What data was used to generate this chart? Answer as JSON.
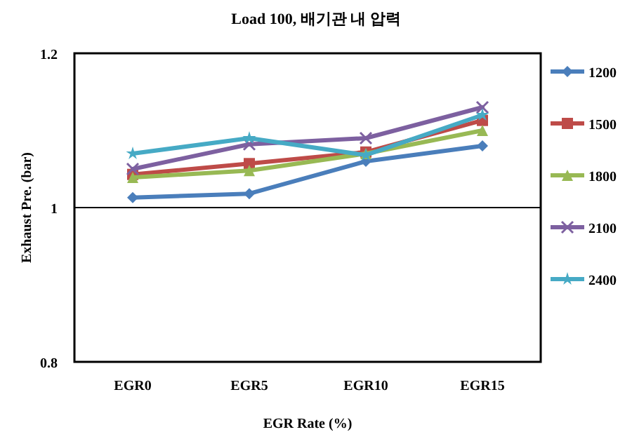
{
  "chart_data": {
    "type": "line",
    "title": "Load 100, 배기관 내 압력",
    "xlabel": "EGR Rate (%)",
    "ylabel": "Exhaust Pre. (bar)",
    "categories": [
      "EGR0",
      "EGR5",
      "EGR10",
      "EGR15"
    ],
    "ylim": [
      0.8,
      1.2
    ],
    "yticks": [
      0.8,
      1,
      1.2
    ],
    "grid": "y",
    "legend": "right",
    "series": [
      {
        "name": "1200",
        "color": "#4a7ebb",
        "marker": "diamond",
        "values": [
          1.013,
          1.018,
          1.06,
          1.08
        ]
      },
      {
        "name": "1500",
        "color": "#be4b48",
        "marker": "square",
        "values": [
          1.043,
          1.057,
          1.072,
          1.113
        ]
      },
      {
        "name": "1800",
        "color": "#98b954",
        "marker": "triangle",
        "values": [
          1.039,
          1.048,
          1.07,
          1.1
        ]
      },
      {
        "name": "2100",
        "color": "#7d60a0",
        "marker": "cross",
        "values": [
          1.05,
          1.082,
          1.09,
          1.13
        ]
      },
      {
        "name": "2400",
        "color": "#46aac5",
        "marker": "star",
        "values": [
          1.07,
          1.09,
          1.068,
          1.12
        ]
      }
    ]
  }
}
